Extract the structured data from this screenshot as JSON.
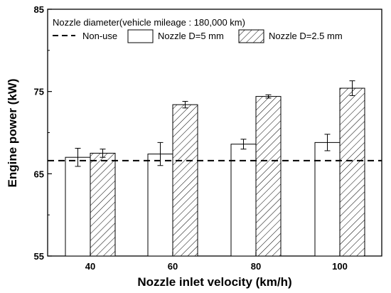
{
  "chart_data": {
    "type": "bar",
    "legend_title": "Nozzle diameter(vehicle mileage : 180,000 km)",
    "xlabel": "Nozzle inlet velocity (km/h)",
    "ylabel": "Engine power (kW)",
    "categories": [
      "40",
      "60",
      "80",
      "100"
    ],
    "ylim": [
      55,
      85
    ],
    "yticks": [
      "55",
      "65",
      "75",
      "85"
    ],
    "baseline": {
      "name": "Non-use",
      "value": 66.6,
      "style": "dashed"
    },
    "series": [
      {
        "name": "Nozzle D=5 mm",
        "pattern": "open",
        "values": [
          67.0,
          67.4,
          68.6,
          68.8
        ],
        "errors": [
          1.1,
          1.4,
          0.6,
          1.0
        ]
      },
      {
        "name": "Nozzle D=2.5 mm",
        "pattern": "hatched",
        "values": [
          67.5,
          73.4,
          74.4,
          75.4
        ],
        "errors": [
          0.5,
          0.4,
          0.2,
          0.9
        ]
      }
    ],
    "legend_position": "top-left",
    "grid": false
  }
}
